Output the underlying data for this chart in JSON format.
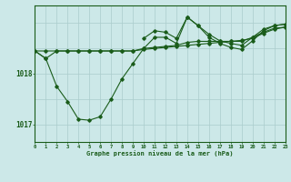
{
  "background_color": "#cce8e8",
  "grid_color": "#aacccc",
  "line_color": "#1a5c1a",
  "title": "Graphe pression niveau de la mer (hPa)",
  "xlim": [
    0,
    23
  ],
  "ylim": [
    1016.65,
    1019.35
  ],
  "yticks": [
    1017,
    1018
  ],
  "xticks": [
    0,
    1,
    2,
    3,
    4,
    5,
    6,
    7,
    8,
    9,
    10,
    11,
    12,
    13,
    14,
    15,
    16,
    17,
    18,
    19,
    20,
    21,
    22,
    23
  ],
  "series_flat1": {
    "x": [
      0,
      1,
      2,
      3,
      4,
      5,
      6,
      7,
      8,
      9,
      10,
      11,
      12,
      13,
      14,
      15,
      16,
      17,
      18,
      19,
      20,
      21,
      22,
      23
    ],
    "y": [
      1018.45,
      1018.45,
      1018.45,
      1018.45,
      1018.45,
      1018.45,
      1018.45,
      1018.45,
      1018.45,
      1018.45,
      1018.48,
      1018.5,
      1018.52,
      1018.54,
      1018.56,
      1018.58,
      1018.6,
      1018.62,
      1018.64,
      1018.66,
      1018.7,
      1018.8,
      1018.88,
      1018.92
    ]
  },
  "series_flat2": {
    "x": [
      0,
      1,
      2,
      3,
      4,
      5,
      6,
      7,
      8,
      9,
      10,
      11,
      12,
      13,
      14,
      15,
      16,
      17,
      18,
      19,
      20,
      21,
      22,
      23
    ],
    "y": [
      1018.45,
      1018.3,
      1018.45,
      1018.45,
      1018.45,
      1018.45,
      1018.45,
      1018.45,
      1018.45,
      1018.45,
      1018.5,
      1018.52,
      1018.54,
      1018.56,
      1018.62,
      1018.64,
      1018.64,
      1018.64,
      1018.64,
      1018.64,
      1018.72,
      1018.82,
      1018.9,
      1018.92
    ]
  },
  "series_upper": {
    "x": [
      10,
      11,
      12,
      13,
      14,
      15,
      16,
      17,
      18,
      19,
      20,
      21,
      22,
      23
    ],
    "y": [
      1018.7,
      1018.85,
      1018.82,
      1018.7,
      1019.12,
      1018.95,
      1018.78,
      1018.65,
      1018.6,
      1018.56,
      1018.72,
      1018.88,
      1018.95,
      1018.98
    ]
  },
  "series_main": {
    "x": [
      0,
      1,
      2,
      3,
      4,
      5,
      6,
      7,
      8,
      9,
      10,
      11,
      12,
      13,
      14,
      15,
      16,
      17,
      18,
      19,
      20,
      21,
      22,
      23
    ],
    "y": [
      1018.45,
      1018.3,
      1017.75,
      1017.45,
      1017.1,
      1017.08,
      1017.15,
      1017.5,
      1017.9,
      1018.2,
      1018.5,
      1018.72,
      1018.72,
      1018.6,
      1019.12,
      1018.95,
      1018.72,
      1018.6,
      1018.52,
      1018.48,
      1018.65,
      1018.85,
      1018.95,
      1018.98
    ]
  }
}
